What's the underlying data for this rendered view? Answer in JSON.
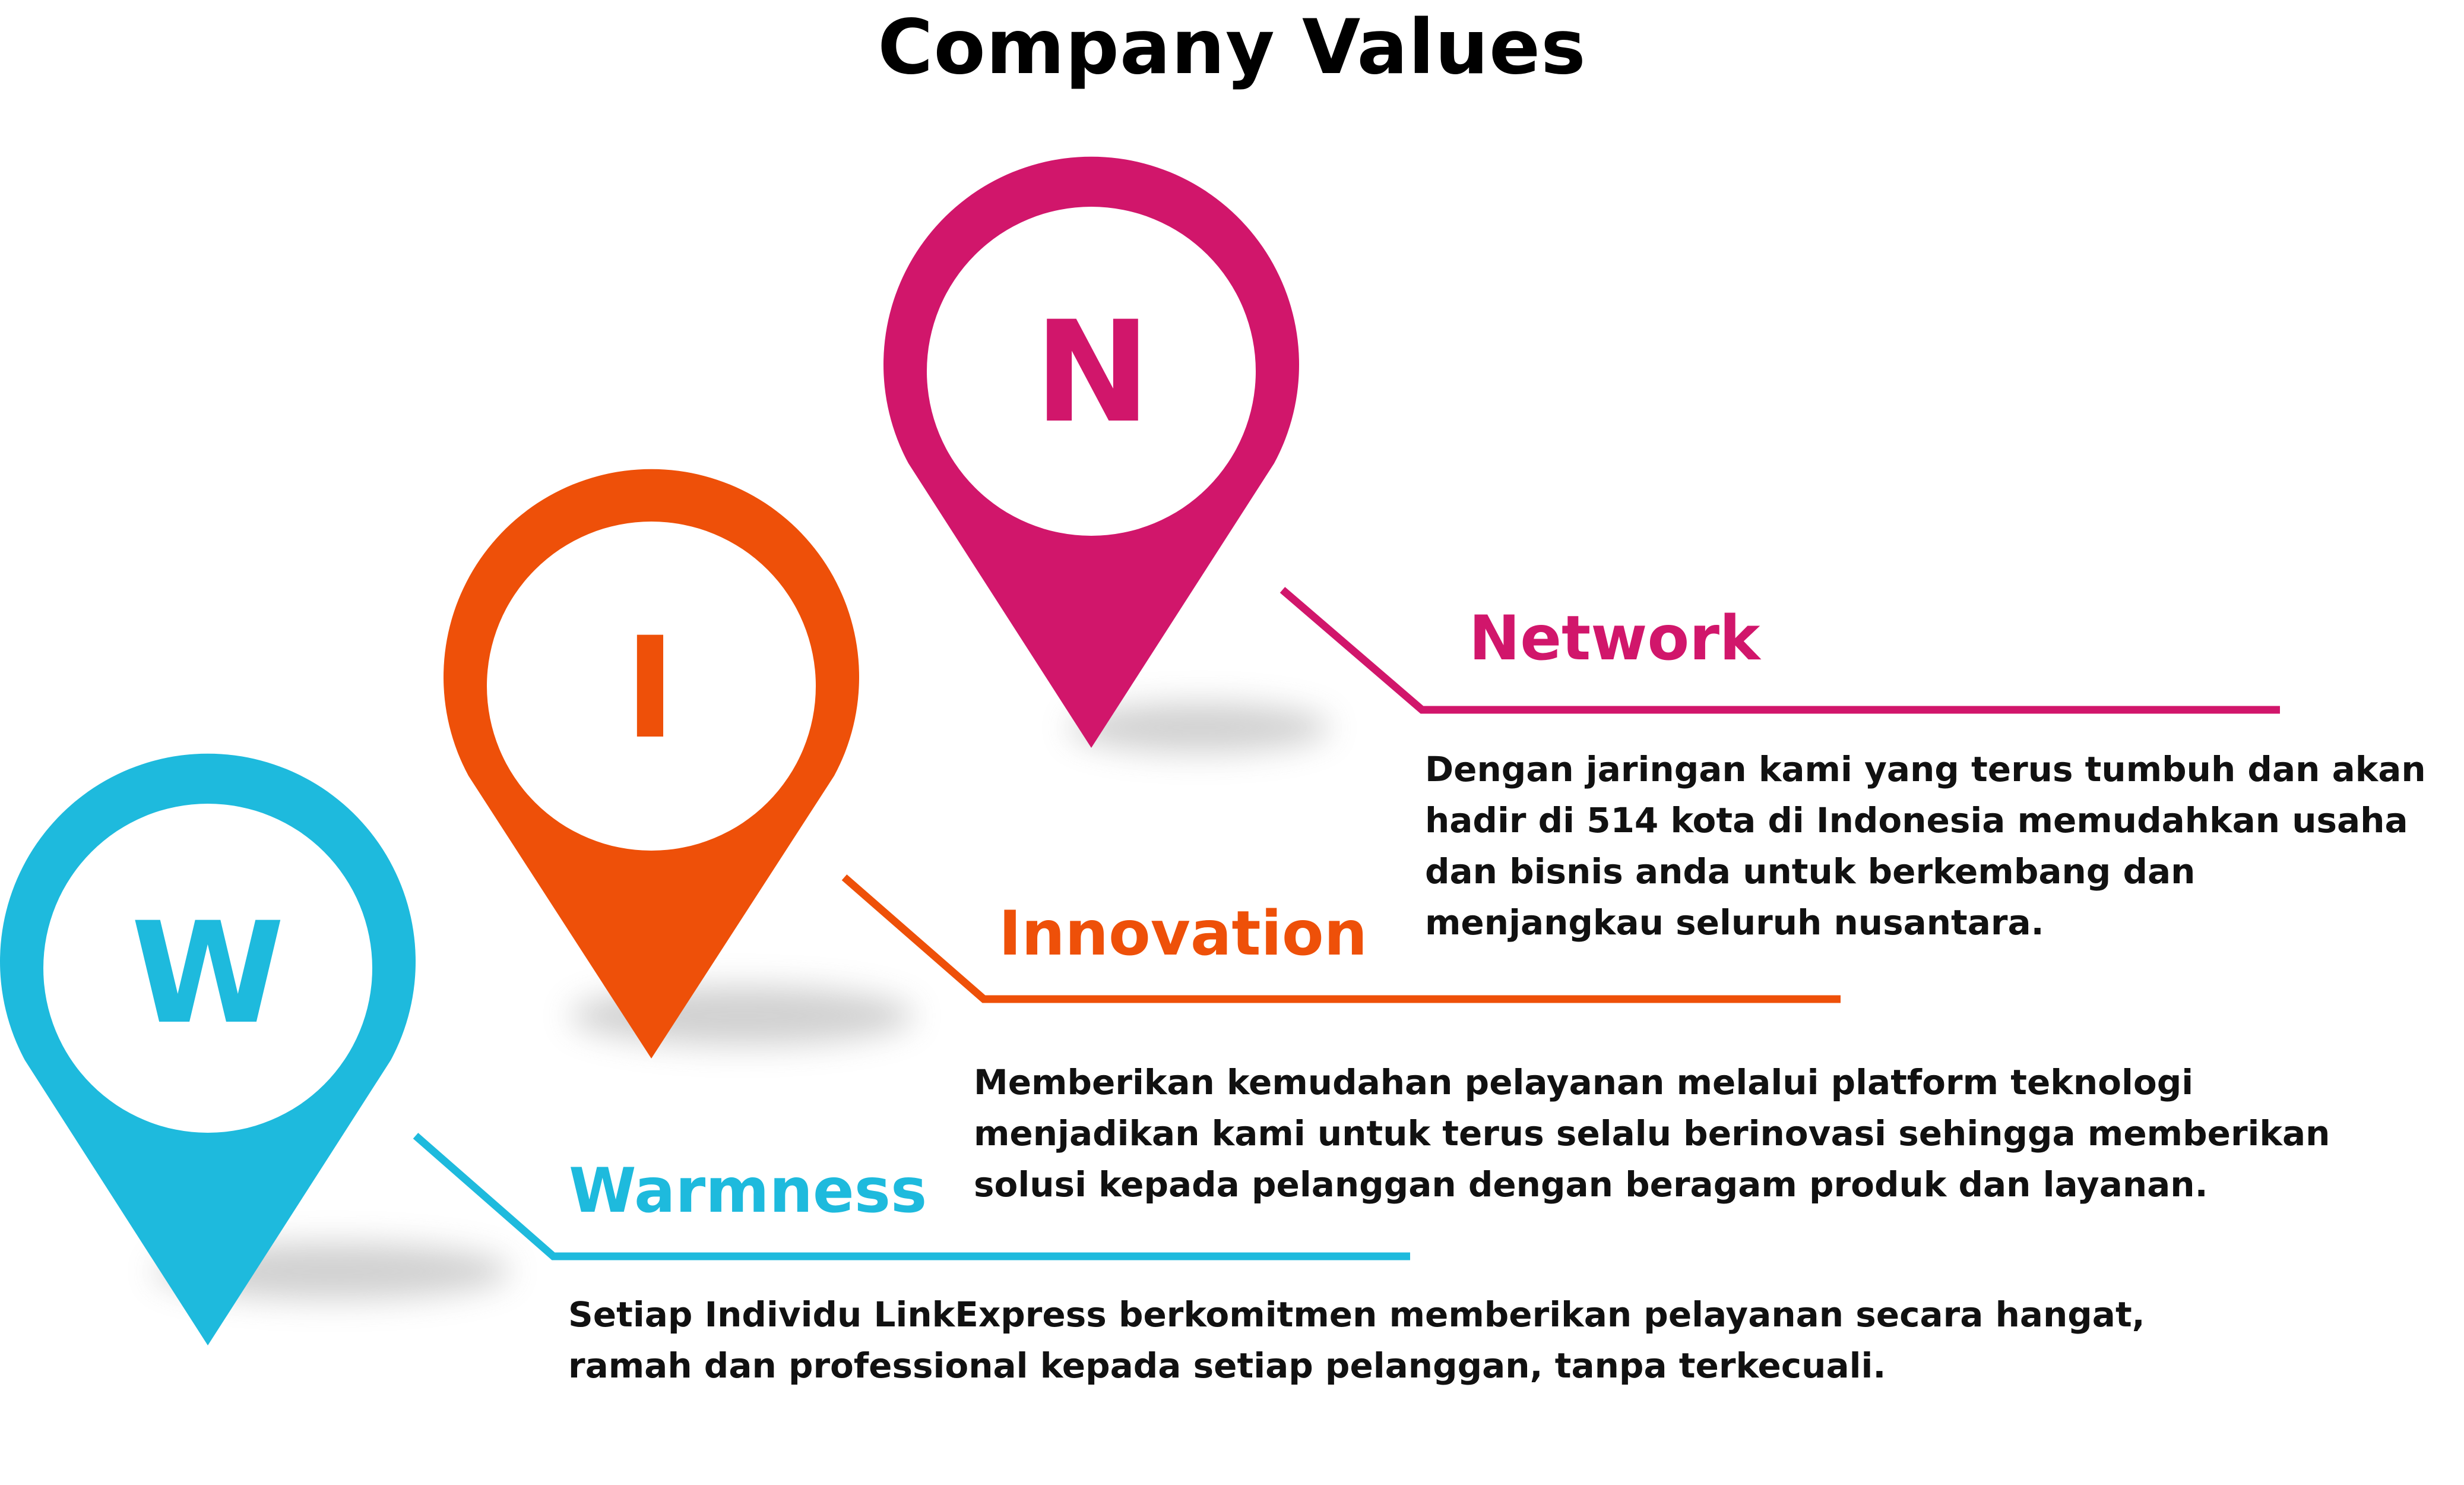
{
  "title": "Company Values",
  "colors": {
    "network": "#D1166B",
    "innovation": "#EE5009",
    "warmness": "#1EBADD",
    "text": "#111111",
    "background": "#FFFFFF"
  },
  "values": [
    {
      "key": "network",
      "letter": "N",
      "heading": "Network",
      "color": "#D1166B",
      "icon": "map-pin-icon",
      "description_lines": [
        "Dengan jaringan kami yang terus tumbuh dan akan",
        "hadir di 514 kota di Indonesia memudahkan usaha",
        "dan bisnis anda untuk berkembang dan",
        "menjangkau seluruh nusantara."
      ]
    },
    {
      "key": "innovation",
      "letter": "I",
      "heading": "Innovation",
      "color": "#EE5009",
      "icon": "map-pin-icon",
      "description_lines": [
        "Memberikan kemudahan pelayanan melalui platform teknologi",
        "menjadikan kami untuk terus selalu berinovasi sehingga memberikan",
        "solusi kepada pelanggan dengan beragam produk dan layanan."
      ]
    },
    {
      "key": "warmness",
      "letter": "W",
      "heading": "Warmness",
      "color": "#1EBADD",
      "icon": "map-pin-icon",
      "description_lines": [
        "Setiap Individu LinkExpress berkomitmen memberikan pelayanan secara hangat,",
        "ramah dan professional kepada setiap pelanggan, tanpa terkecuali."
      ]
    }
  ]
}
